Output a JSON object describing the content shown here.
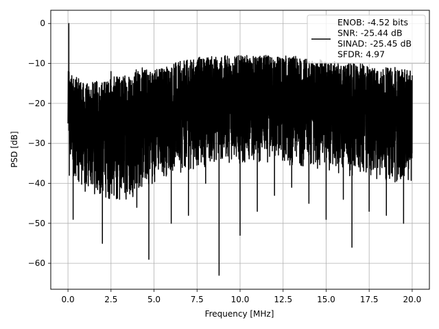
{
  "chart_data": {
    "type": "line",
    "title": "",
    "xlabel": "Frequency [MHz]",
    "ylabel": "PSD [dB]",
    "xlim": [
      -1.0,
      21.0
    ],
    "ylim": [
      -66.5,
      3.3
    ],
    "xticks": [
      0.0,
      2.5,
      5.0,
      7.5,
      10.0,
      12.5,
      15.0,
      17.5,
      20.0
    ],
    "xtick_labels": [
      "0.0",
      "2.5",
      "5.0",
      "7.5",
      "10.0",
      "12.5",
      "15.0",
      "17.5",
      "20.0"
    ],
    "yticks": [
      0,
      -10,
      -20,
      -30,
      -40,
      -50,
      -60
    ],
    "ytick_labels": [
      "0",
      "−10",
      "−20",
      "−30",
      "−40",
      "−50",
      "−60"
    ],
    "grid": true,
    "legend_position": "top-right",
    "legend_entries": [
      "ENOB: -4.52 bits",
      "SNR: -25.44 dB",
      "SINAD: -25.45 dB",
      "SFDR: 4.97"
    ],
    "series": [
      {
        "color": "#000000",
        "note_on_shape": "dense noise floor",
        "x": [
          0.0,
          0.02,
          0.05,
          0.08,
          0.3,
          0.5,
          0.7,
          1.0,
          1.5,
          2.0,
          2.5,
          3.0,
          3.5,
          4.0,
          4.7,
          5.5,
          6.0,
          6.5,
          7.0,
          7.5,
          8.0,
          8.5,
          8.78,
          9.5,
          10.0,
          10.5,
          11.0,
          11.5,
          12.0,
          12.5,
          13.0,
          13.5,
          14.0,
          14.5,
          15.0,
          15.5,
          16.0,
          16.5,
          17.0,
          17.5,
          18.0,
          18.5,
          19.0,
          19.5,
          20.0
        ],
        "y": [
          -25,
          -12,
          0,
          -38,
          -49,
          -22,
          -15,
          -42,
          -18,
          -55,
          -12,
          -44,
          -17,
          -46,
          -59,
          -14,
          -50,
          -13,
          -48,
          -11,
          -40,
          -9,
          -63,
          -12,
          -53,
          -10,
          -47,
          -8,
          -43,
          -9,
          -41,
          -12,
          -45,
          -10,
          -49,
          -11,
          -44,
          -56,
          -13,
          -47,
          -12,
          -48,
          -11,
          -50,
          -13
        ],
        "envelope": {
          "x": [
            0.05,
            1.0,
            2.0,
            3.0,
            4.0,
            5.0,
            6.0,
            7.0,
            8.0,
            9.0,
            10.0,
            11.0,
            12.0,
            13.0,
            14.0,
            15.0,
            16.0,
            17.0,
            18.0,
            19.0,
            20.0
          ],
          "upper": [
            -12,
            -15,
            -14,
            -13,
            -11,
            -11,
            -10,
            -9,
            -8,
            -8,
            -8,
            -8,
            -8,
            -8,
            -9,
            -9,
            -10,
            -10,
            -11,
            -11,
            -12
          ],
          "lower": [
            -37,
            -42,
            -44,
            -45,
            -43,
            -40,
            -38,
            -37,
            -36,
            -35,
            -35,
            -35,
            -35,
            -36,
            -36,
            -37,
            -38,
            -39,
            -39,
            -40,
            -40
          ]
        }
      }
    ]
  }
}
